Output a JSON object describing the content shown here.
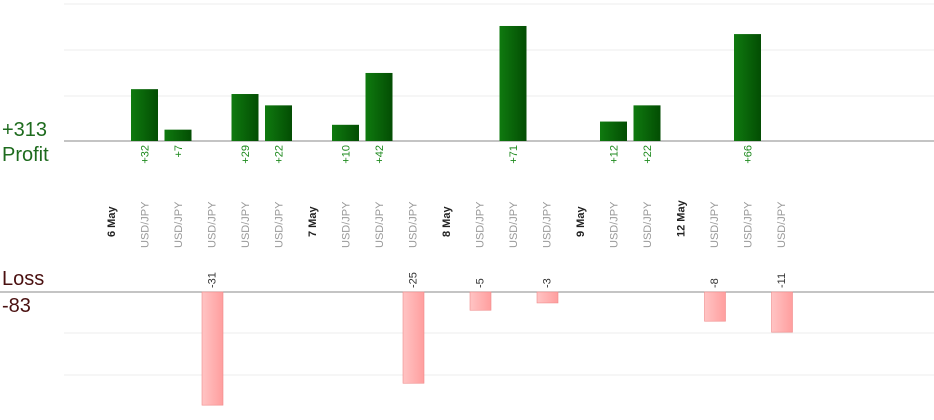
{
  "summary": {
    "profit_total": "+313",
    "profit_label": "Profit",
    "loss_label": "Loss",
    "loss_total": "-83"
  },
  "colors": {
    "profit_bar": "#0b6b0b",
    "profit_text": "#1e8a1e",
    "loss_bar": "#ffb3b3",
    "axis": "#888888"
  },
  "chart_data": {
    "type": "bar",
    "grid": true,
    "groups": [
      {
        "date": "6 May",
        "trades": [
          {
            "pair": "USD/JPY",
            "value": 32,
            "label": "+32"
          },
          {
            "pair": "USD/JPY",
            "value": 7,
            "label": "+7"
          },
          {
            "pair": "USD/JPY",
            "value": -31,
            "label": "-31"
          },
          {
            "pair": "USD/JPY",
            "value": 29,
            "label": "+29"
          },
          {
            "pair": "USD/JPY",
            "value": 22,
            "label": "+22"
          }
        ]
      },
      {
        "date": "7 May",
        "trades": [
          {
            "pair": "USD/JPY",
            "value": 10,
            "label": "+10"
          },
          {
            "pair": "USD/JPY",
            "value": 42,
            "label": "+42"
          },
          {
            "pair": "USD/JPY",
            "value": -25,
            "label": "-25"
          }
        ]
      },
      {
        "date": "8 May",
        "trades": [
          {
            "pair": "USD/JPY",
            "value": -5,
            "label": "-5"
          },
          {
            "pair": "USD/JPY",
            "value": 71,
            "label": "+71"
          },
          {
            "pair": "USD/JPY",
            "value": -3,
            "label": "-3"
          }
        ]
      },
      {
        "date": "9 May",
        "trades": [
          {
            "pair": "USD/JPY",
            "value": 12,
            "label": "+12"
          },
          {
            "pair": "USD/JPY",
            "value": 22,
            "label": "+22"
          }
        ]
      },
      {
        "date": "12 May",
        "trades": [
          {
            "pair": "USD/JPY",
            "value": -8,
            "label": "-8"
          },
          {
            "pair": "USD/JPY",
            "value": 66,
            "label": "+66"
          },
          {
            "pair": "USD/JPY",
            "value": -11,
            "label": "-11"
          }
        ]
      }
    ]
  }
}
